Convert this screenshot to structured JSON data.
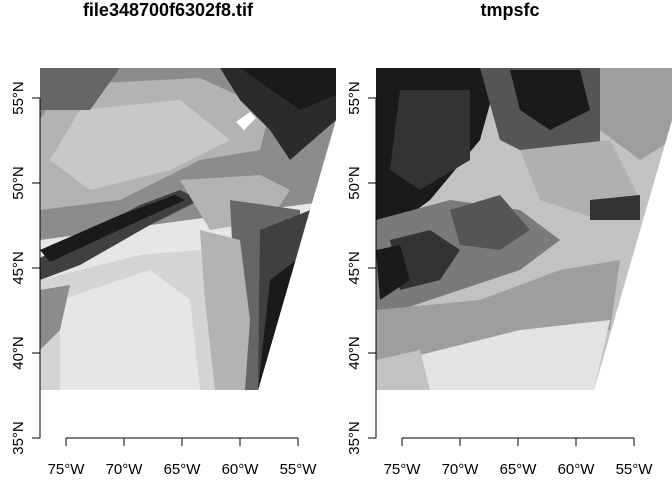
{
  "panels": [
    {
      "title": "file348700f6302f8.tif",
      "lon_ticks": [
        "75°W",
        "70°W",
        "65°W",
        "60°W",
        "55°W"
      ],
      "lat_ticks": [
        "35°N",
        "40°N",
        "45°N",
        "50°N",
        "55°N"
      ],
      "raster": "grayscale elevation-like raster",
      "palette": [
        "#1a1a1a",
        "#404040",
        "#666666",
        "#8c8c8c",
        "#b3b3b3",
        "#d4d4d4",
        "#e6e6e6"
      ]
    },
    {
      "title": "tmpsfc",
      "lon_ticks": [
        "75°W",
        "70°W",
        "65°W",
        "60°W",
        "55°W"
      ],
      "lat_ticks": [
        "35°N",
        "40°N",
        "45°N",
        "50°N",
        "55°N"
      ],
      "raster": "grayscale surface temperature raster",
      "palette": [
        "#1a1a1a",
        "#333333",
        "#555555",
        "#7a7a7a",
        "#9e9e9e",
        "#c2c2c2",
        "#e3e3e3"
      ]
    }
  ]
}
